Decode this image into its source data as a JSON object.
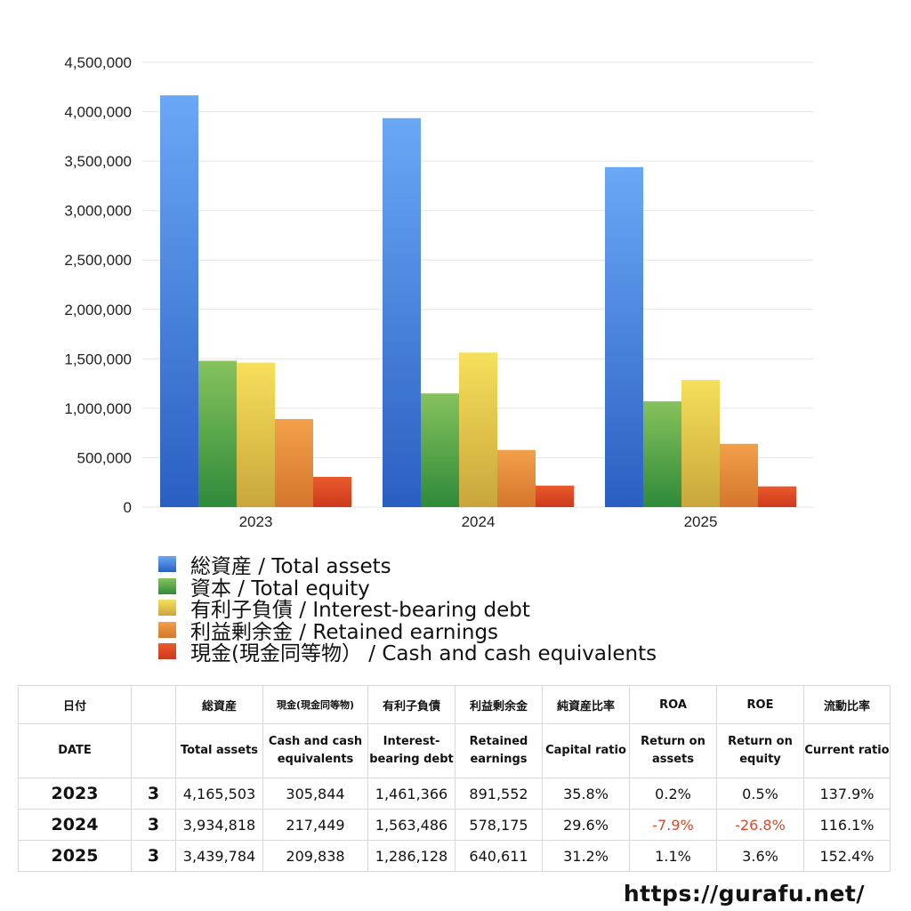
{
  "chart_data": {
    "type": "bar",
    "categories": [
      "2023",
      "2024",
      "2025"
    ],
    "ylim": [
      0,
      4500000
    ],
    "yticks": [
      "4,500,000",
      "4,000,000",
      "3,500,000",
      "3,000,000",
      "2,500,000",
      "2,000,000",
      "1,500,000",
      "1,000,000",
      "500,000",
      "0"
    ],
    "ytick_values": [
      4500000,
      4000000,
      3500000,
      3000000,
      2500000,
      2000000,
      1500000,
      1000000,
      500000,
      0
    ],
    "grid": true,
    "legend_position": "bottom",
    "series": [
      {
        "name": "総資産 / Total assets",
        "values": [
          4165503,
          3934818,
          3439784
        ],
        "color_top": "#6aa8f6",
        "color_bottom": "#2a5fc2"
      },
      {
        "name": "資本 / Total equity",
        "values": [
          1480000,
          1150000,
          1070000
        ],
        "color_top": "#86c25c",
        "color_bottom": "#2f8a3a"
      },
      {
        "name": "有利子負債 / Interest-bearing debt",
        "values": [
          1461366,
          1563486,
          1286128
        ],
        "color_top": "#f6e05a",
        "color_bottom": "#c9a63c"
      },
      {
        "name": "利益剰余金 / Retained earnings",
        "values": [
          891552,
          578175,
          640611
        ],
        "color_top": "#f2a04a",
        "color_bottom": "#d4762c"
      },
      {
        "name": "現金(現金同等物）  /  Cash and cash equivalents",
        "values": [
          305844,
          217449,
          209838
        ],
        "color_top": "#ea5a2a",
        "color_bottom": "#cc3a1e"
      }
    ]
  },
  "table": {
    "header_jp": [
      "日付",
      "",
      "総資産",
      "現金(現金同等物)",
      "有利子負債",
      "利益剰余金",
      "純資産比率",
      "ROA",
      "ROE",
      "流動比率"
    ],
    "header_en": [
      "DATE",
      "",
      "Total assets",
      "Cash and cash equivalents",
      "Interest-bearing debt",
      "Retained earnings",
      "Capital ratio",
      "Return on assets",
      "Return on equity",
      "Current ratio"
    ],
    "rows": [
      {
        "year": "2023",
        "month": "3",
        "total_assets": "4,165,503",
        "cash": "305,844",
        "debt": "1,461,366",
        "retained": "891,552",
        "capital_ratio": "35.8%",
        "roa": "0.2%",
        "roe": "0.5%",
        "current_ratio": "137.9%"
      },
      {
        "year": "2024",
        "month": "3",
        "total_assets": "3,934,818",
        "cash": "217,449",
        "debt": "1,563,486",
        "retained": "578,175",
        "capital_ratio": "29.6%",
        "roa": "-7.9%",
        "roe": "-26.8%",
        "current_ratio": "116.1%"
      },
      {
        "year": "2025",
        "month": "3",
        "total_assets": "3,439,784",
        "cash": "209,838",
        "debt": "1,286,128",
        "retained": "640,611",
        "capital_ratio": "31.2%",
        "roa": "1.1%",
        "roe": "3.6%",
        "current_ratio": "152.4%"
      }
    ]
  },
  "watermark": "https://gurafu.net/"
}
